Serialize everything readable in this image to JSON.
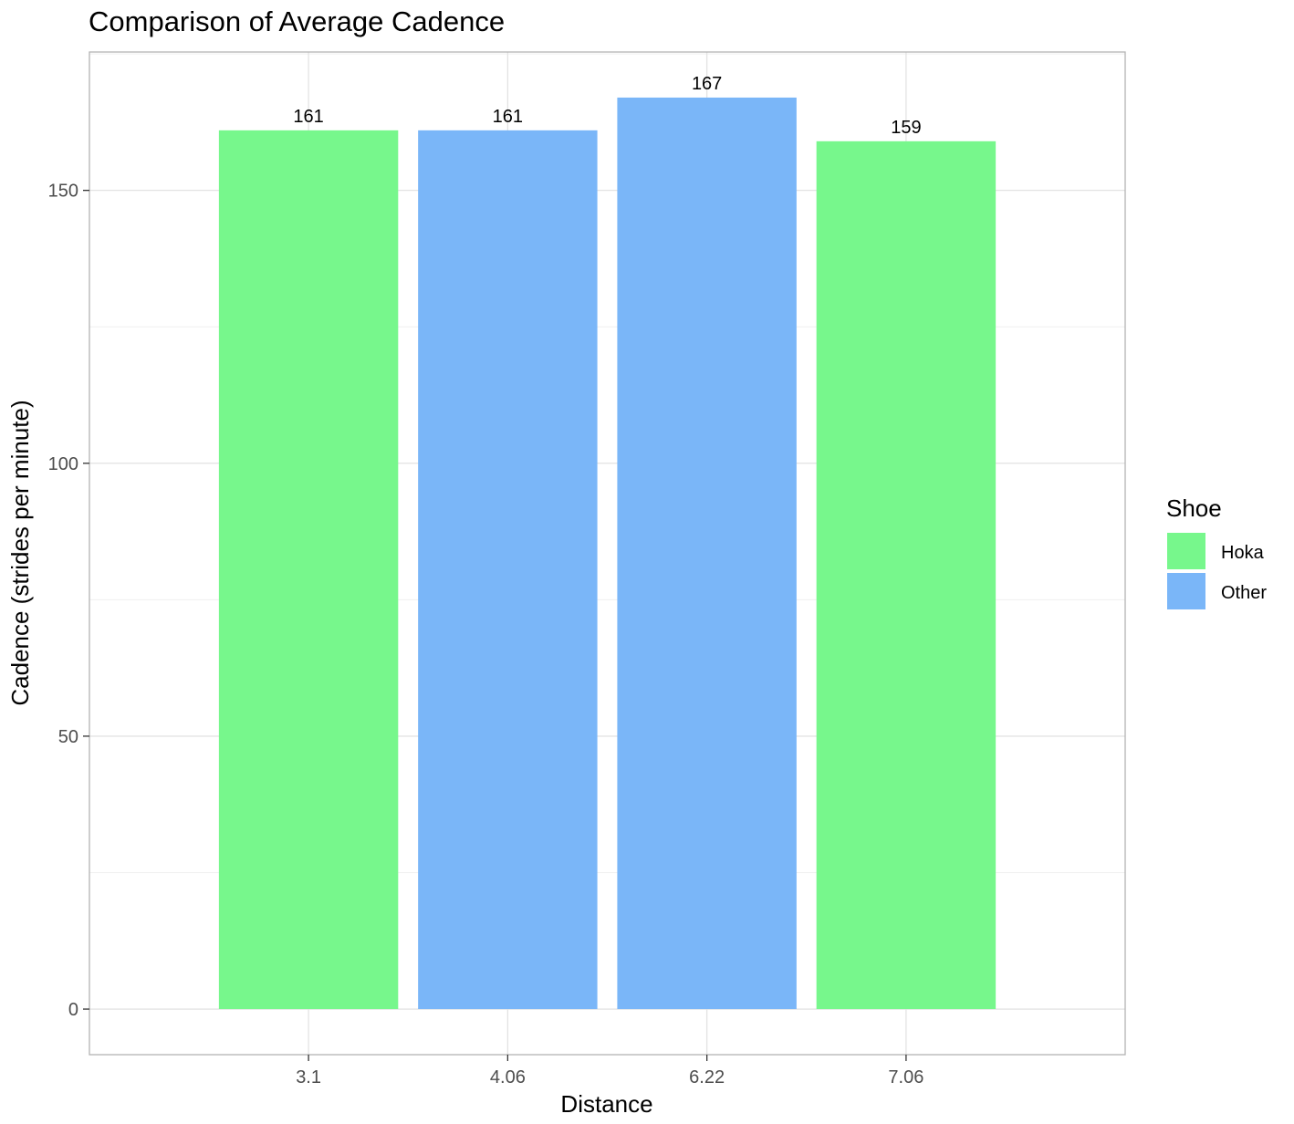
{
  "chart_data": {
    "type": "bar",
    "title": "Comparison of Average Cadence",
    "xlabel": "Distance",
    "ylabel": "Cadence (strides per minute)",
    "categories": [
      "3.1",
      "4.06",
      "6.22",
      "7.06"
    ],
    "values": [
      161,
      161,
      167,
      159
    ],
    "data_labels": [
      "161",
      "161",
      "167",
      "159"
    ],
    "groups": [
      "Hoka",
      "Other",
      "Other",
      "Hoka"
    ],
    "ylim": [
      -8.35,
      175.35
    ],
    "yticks": [
      0,
      50,
      100,
      150
    ],
    "ytick_labels": [
      "0",
      "50",
      "100",
      "150"
    ],
    "grid": true,
    "legend": {
      "title": "Shoe",
      "placement": "right",
      "entries": [
        {
          "label": "Hoka",
          "color": "#77F78C"
        },
        {
          "label": "Other",
          "color": "#7AB6F8"
        }
      ]
    }
  }
}
